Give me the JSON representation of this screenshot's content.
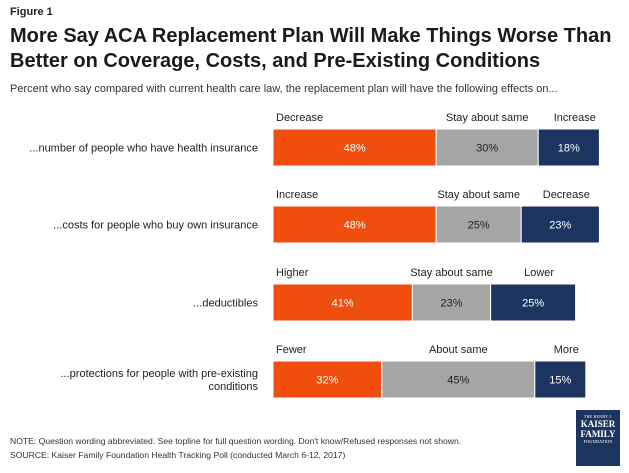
{
  "figure_label": "Figure 1",
  "title": "More Say ACA Replacement Plan Will Make Things Worse Than Better on Coverage, Costs, and Pre-Existing Conditions",
  "subtitle": "Percent who say compared with current health care law, the replacement plan will have the following effects on...",
  "colors": {
    "first": "#f04e0f",
    "middle": "#a5a5a5",
    "last": "#1c3560"
  },
  "chart_data": {
    "type": "bar",
    "orientation": "horizontal",
    "stacked": true,
    "rows": [
      {
        "label": [
          "...number of people who have health insurance"
        ],
        "segments": [
          {
            "name": "Decrease",
            "value": 48
          },
          {
            "name": "Stay about same",
            "value": 30
          },
          {
            "name": "Increase",
            "value": 18
          }
        ]
      },
      {
        "label": [
          "...costs for people who buy own insurance"
        ],
        "segments": [
          {
            "name": "Increase",
            "value": 48
          },
          {
            "name": "Stay about same",
            "value": 25
          },
          {
            "name": "Decrease",
            "value": 23
          }
        ]
      },
      {
        "label": [
          "...deductibles"
        ],
        "segments": [
          {
            "name": "Higher",
            "value": 41
          },
          {
            "name": "Stay about same",
            "value": 23
          },
          {
            "name": "Lower",
            "value": 25
          }
        ]
      },
      {
        "label": [
          "...protections for people with pre-existing",
          "conditions"
        ],
        "segments": [
          {
            "name": "Fewer",
            "value": 32
          },
          {
            "name": "About same",
            "value": 45
          },
          {
            "name": "More",
            "value": 15
          }
        ]
      }
    ]
  },
  "notes": {
    "note": "NOTE: Question wording abbreviated. See topline for full question wording. Don't know/Refused responses not shown.",
    "source": "SOURCE: Kaiser Family Foundation Health Tracking Poll (conducted March 6-12, 2017)"
  },
  "logo": {
    "line1": "THE HENRY J.",
    "line2": "KAISER",
    "line3": "FAMILY",
    "line4": "FOUNDATION"
  }
}
